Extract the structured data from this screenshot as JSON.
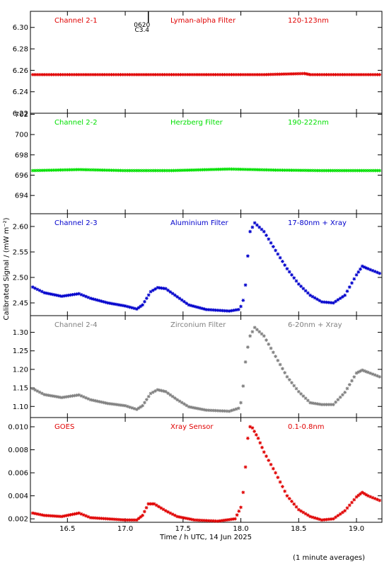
{
  "chart_data": {
    "type": "scatter",
    "xlabel": "Time / h UTC, 14 Jun 2025",
    "ylabel": "Calibrated Signal / (mW m⁻²)",
    "footnote": "(1 minute averages)",
    "xlim": [
      16.18,
      19.22
    ],
    "xticks": [
      16.5,
      17.0,
      17.5,
      18.0,
      18.5,
      19.0
    ],
    "xtick_labels": [
      "16.5",
      "17.0",
      "17.5",
      "18.0",
      "18.5",
      "19.0"
    ],
    "event_marker": {
      "x": 17.2,
      "label_top": "0620",
      "label_bottom": "C3.4"
    },
    "panels": [
      {
        "name": "Channel 2-1",
        "filter": "Lyman-alpha Filter",
        "band": "120-123nm",
        "color": "#e00000",
        "ylim": [
          6.22,
          6.315
        ],
        "yticks": [
          6.22,
          6.24,
          6.26,
          6.28,
          6.3
        ],
        "ytick_labels": [
          "6.22",
          "6.24",
          "6.26",
          "6.28",
          "6.30"
        ],
        "points": [
          [
            16.2,
            6.256
          ],
          [
            16.6,
            6.256
          ],
          [
            17.0,
            6.256
          ],
          [
            17.4,
            6.256
          ],
          [
            17.8,
            6.256
          ],
          [
            18.2,
            6.256
          ],
          [
            18.55,
            6.257
          ],
          [
            18.6,
            6.256
          ],
          [
            19.0,
            6.256
          ],
          [
            19.2,
            6.256
          ]
        ]
      },
      {
        "name": "Channel 2-2",
        "filter": "Herzberg Filter",
        "band": "190-222nm",
        "color": "#00e000",
        "ylim": [
          692.2,
          702.1
        ],
        "yticks": [
          694,
          696,
          698,
          700,
          702
        ],
        "ytick_labels": [
          "694",
          "696",
          "698",
          "700",
          "702"
        ],
        "points": [
          [
            16.2,
            696.45
          ],
          [
            16.6,
            696.55
          ],
          [
            17.0,
            696.45
          ],
          [
            17.4,
            696.45
          ],
          [
            17.9,
            696.6
          ],
          [
            18.3,
            696.5
          ],
          [
            18.7,
            696.45
          ],
          [
            19.2,
            696.45
          ]
        ]
      },
      {
        "name": "Channel 2-3",
        "filter": "Aluminium Filter",
        "band": "17-80nm + Xray",
        "color": "#0000cc",
        "ylim": [
          2.425,
          2.625
        ],
        "yticks": [
          2.45,
          2.5,
          2.55,
          2.6
        ],
        "ytick_labels": [
          "2.45",
          "2.50",
          "2.55",
          "2.60"
        ],
        "points": [
          [
            16.2,
            2.481
          ],
          [
            16.3,
            2.47
          ],
          [
            16.45,
            2.463
          ],
          [
            16.6,
            2.468
          ],
          [
            16.7,
            2.459
          ],
          [
            16.85,
            2.45
          ],
          [
            17.0,
            2.444
          ],
          [
            17.1,
            2.438
          ],
          [
            17.15,
            2.446
          ],
          [
            17.22,
            2.472
          ],
          [
            17.28,
            2.48
          ],
          [
            17.35,
            2.478
          ],
          [
            17.45,
            2.462
          ],
          [
            17.55,
            2.446
          ],
          [
            17.7,
            2.437
          ],
          [
            17.9,
            2.434
          ],
          [
            17.98,
            2.437
          ],
          [
            18.0,
            2.443
          ],
          [
            18.02,
            2.455
          ],
          [
            18.04,
            2.485
          ],
          [
            18.06,
            2.542
          ],
          [
            18.08,
            2.59
          ],
          [
            18.12,
            2.607
          ],
          [
            18.2,
            2.59
          ],
          [
            18.3,
            2.553
          ],
          [
            18.4,
            2.517
          ],
          [
            18.5,
            2.487
          ],
          [
            18.6,
            2.465
          ],
          [
            18.7,
            2.452
          ],
          [
            18.8,
            2.45
          ],
          [
            18.9,
            2.465
          ],
          [
            19.0,
            2.505
          ],
          [
            19.05,
            2.522
          ],
          [
            19.1,
            2.517
          ],
          [
            19.2,
            2.508
          ]
        ]
      },
      {
        "name": "Channel 2-4",
        "filter": "Zirconium Filter",
        "band": "6-20nm + Xray",
        "color": "#808080",
        "ylim": [
          1.07,
          1.345
        ],
        "yticks": [
          1.1,
          1.15,
          1.2,
          1.25,
          1.3
        ],
        "ytick_labels": [
          "1.10",
          "1.15",
          "1.20",
          "1.25",
          "1.30"
        ],
        "points": [
          [
            16.2,
            1.148
          ],
          [
            16.3,
            1.132
          ],
          [
            16.45,
            1.124
          ],
          [
            16.6,
            1.131
          ],
          [
            16.7,
            1.118
          ],
          [
            16.85,
            1.108
          ],
          [
            17.0,
            1.102
          ],
          [
            17.1,
            1.092
          ],
          [
            17.15,
            1.102
          ],
          [
            17.22,
            1.135
          ],
          [
            17.28,
            1.145
          ],
          [
            17.35,
            1.14
          ],
          [
            17.45,
            1.118
          ],
          [
            17.55,
            1.099
          ],
          [
            17.7,
            1.09
          ],
          [
            17.9,
            1.087
          ],
          [
            17.98,
            1.095
          ],
          [
            18.0,
            1.11
          ],
          [
            18.02,
            1.155
          ],
          [
            18.04,
            1.22
          ],
          [
            18.06,
            1.26
          ],
          [
            18.08,
            1.29
          ],
          [
            18.12,
            1.313
          ],
          [
            18.2,
            1.29
          ],
          [
            18.3,
            1.235
          ],
          [
            18.4,
            1.18
          ],
          [
            18.5,
            1.14
          ],
          [
            18.6,
            1.11
          ],
          [
            18.7,
            1.105
          ],
          [
            18.8,
            1.105
          ],
          [
            18.9,
            1.138
          ],
          [
            19.0,
            1.19
          ],
          [
            19.05,
            1.198
          ],
          [
            19.1,
            1.192
          ],
          [
            19.2,
            1.18
          ]
        ]
      },
      {
        "name": "GOES",
        "filter": "Xray Sensor",
        "band": "0.1-0.8nm",
        "color": "#e00000",
        "ylim": [
          0.0017,
          0.0108
        ],
        "yticks": [
          0.002,
          0.004,
          0.006,
          0.008,
          0.01
        ],
        "ytick_labels": [
          "0.002",
          "0.004",
          "0.006",
          "0.008",
          "0.010"
        ],
        "points": [
          [
            16.2,
            0.0025
          ],
          [
            16.3,
            0.0023
          ],
          [
            16.45,
            0.0022
          ],
          [
            16.6,
            0.0025
          ],
          [
            16.7,
            0.0021
          ],
          [
            16.85,
            0.002
          ],
          [
            17.0,
            0.0019
          ],
          [
            17.1,
            0.0019
          ],
          [
            17.15,
            0.0023
          ],
          [
            17.2,
            0.0033
          ],
          [
            17.25,
            0.0033
          ],
          [
            17.35,
            0.0027
          ],
          [
            17.45,
            0.0022
          ],
          [
            17.6,
            0.0019
          ],
          [
            17.8,
            0.0018
          ],
          [
            17.95,
            0.002
          ],
          [
            18.0,
            0.003
          ],
          [
            18.02,
            0.0043
          ],
          [
            18.04,
            0.0065
          ],
          [
            18.06,
            0.009
          ],
          [
            18.08,
            0.01
          ],
          [
            18.1,
            0.0099
          ],
          [
            18.15,
            0.009
          ],
          [
            18.2,
            0.0078
          ],
          [
            18.3,
            0.006
          ],
          [
            18.4,
            0.004
          ],
          [
            18.5,
            0.0028
          ],
          [
            18.6,
            0.0022
          ],
          [
            18.7,
            0.0019
          ],
          [
            18.8,
            0.002
          ],
          [
            18.9,
            0.0027
          ],
          [
            19.0,
            0.0039
          ],
          [
            19.05,
            0.0043
          ],
          [
            19.1,
            0.004
          ],
          [
            19.2,
            0.0036
          ]
        ]
      }
    ]
  }
}
